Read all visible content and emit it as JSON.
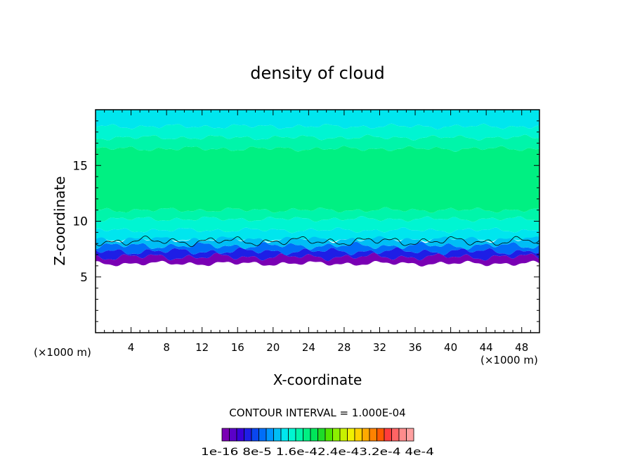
{
  "chart_data": {
    "type": "heatmap",
    "title": "density of cloud",
    "xlabel": "X-coordinate",
    "ylabel": "Z-coordinate",
    "x_unit_left": "(×1000 m)",
    "x_unit_right": "(×1000 m)",
    "xlim": [
      0,
      50
    ],
    "ylim": [
      0,
      20
    ],
    "xticks": [
      4,
      8,
      12,
      16,
      20,
      24,
      28,
      32,
      36,
      40,
      44,
      48
    ],
    "yticks": [
      5,
      10,
      15
    ],
    "cloud_layer": {
      "base_z": [
        6.2,
        6.8
      ],
      "top_z": 18.5,
      "core_z": [
        11,
        16.5
      ],
      "contour_line_z": 8.2
    },
    "contour_interval": "CONTOUR INTERVAL = 1.000E-04",
    "colorbar": {
      "min": 1e-16,
      "max": 0.0004,
      "labels": [
        "1e-16",
        "8e-5",
        "1.6e-4",
        "2.4e-4",
        "3.2e-4",
        "4e-4"
      ],
      "label_text": "1e-16 8e-5 1.6e-42.4e-43.2e-4 4e-4",
      "colors": [
        "#7a00b4",
        "#5a00c8",
        "#3a00d8",
        "#1e1ee6",
        "#0a46f0",
        "#006ef8",
        "#0096ff",
        "#00bef5",
        "#00e6ee",
        "#00f5d2",
        "#00f5aa",
        "#00f082",
        "#00e65a",
        "#1edc28",
        "#50e600",
        "#8cf000",
        "#c8f000",
        "#f0f000",
        "#ffd200",
        "#ffaa00",
        "#ff8200",
        "#ff5a00",
        "#ff3c3c",
        "#ff6464",
        "#ff8c8c",
        "#ffa0a0"
      ]
    }
  }
}
